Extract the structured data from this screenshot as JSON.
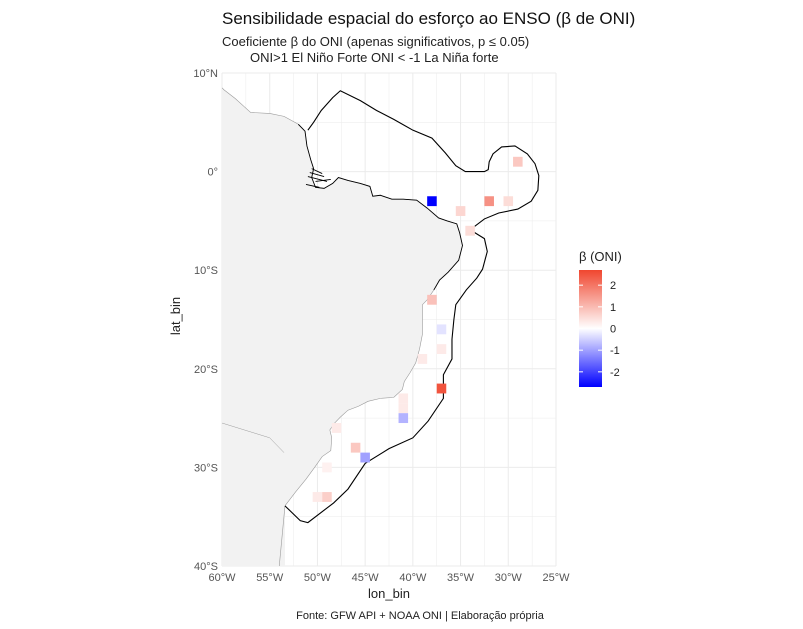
{
  "chart_data": {
    "type": "heatmap",
    "title": "Sensibilidade espacial do esforço ao ENSO (β de ONI)",
    "subtitle_lines": [
      "Coeficiente β do ONI (apenas significativos, p ≤ 0.05)",
      "ONI>1 El Niño Forte ONI < -1 La Niña forte"
    ],
    "xlabel": "lon_bin",
    "ylabel": "lat_bin",
    "caption": "Fonte: GFW API + NOAA ONI | Elaboração própria",
    "xlim": [
      -60,
      -25
    ],
    "ylim": [
      -40,
      10
    ],
    "x_ticks": [
      -60,
      -55,
      -50,
      -45,
      -40,
      -35,
      -30,
      -25
    ],
    "x_tick_labels": [
      "60°W",
      "55°W",
      "50°W",
      "45°W",
      "40°W",
      "35°W",
      "30°W",
      "25°W"
    ],
    "y_ticks": [
      10,
      0,
      -10,
      -20,
      -30,
      -40
    ],
    "y_tick_labels": [
      "10°N",
      "0°",
      "10°S",
      "20°S",
      "30°S",
      "40°S"
    ],
    "grid": true,
    "legend": {
      "title": "β (ONI)",
      "placement": "right",
      "min": -2.7,
      "max": 2.7,
      "ticks": [
        2,
        1,
        0,
        -1,
        -2
      ],
      "tick_labels": [
        "2",
        "1",
        "0",
        "-1",
        "-2"
      ],
      "low_color": "#0000ff",
      "mid_color": "#ffffff",
      "high_color": "#f0462f"
    },
    "colors": {
      "land": "#f2f2f2",
      "land_stroke": "#9a9a9a",
      "eez_stroke": "#000000",
      "grid": "#ebebeb"
    },
    "cells": [
      {
        "lon": -29,
        "lat": 1,
        "value": 0.8
      },
      {
        "lon": -38,
        "lat": -3,
        "value": -2.7
      },
      {
        "lon": -32,
        "lat": -3,
        "value": 1.6
      },
      {
        "lon": -30,
        "lat": -3,
        "value": 0.5
      },
      {
        "lon": -35,
        "lat": -4,
        "value": 0.6
      },
      {
        "lon": -34,
        "lat": -6,
        "value": 0.5
      },
      {
        "lon": -38,
        "lat": -13,
        "value": 0.9
      },
      {
        "lon": -37,
        "lat": -16,
        "value": -0.3
      },
      {
        "lon": -37,
        "lat": -18,
        "value": 0.3
      },
      {
        "lon": -39,
        "lat": -19,
        "value": 0.3
      },
      {
        "lon": -37,
        "lat": -22,
        "value": 2.5
      },
      {
        "lon": -41,
        "lat": -23,
        "value": 0.3
      },
      {
        "lon": -41,
        "lat": -24,
        "value": 0.3
      },
      {
        "lon": -41,
        "lat": -25,
        "value": -0.8
      },
      {
        "lon": -48,
        "lat": -26,
        "value": 0.3
      },
      {
        "lon": -46,
        "lat": -28,
        "value": 0.8
      },
      {
        "lon": -45,
        "lat": -29,
        "value": -1.0
      },
      {
        "lon": -49,
        "lat": -30,
        "value": 0.2
      },
      {
        "lon": -50,
        "lat": -33,
        "value": 0.3
      },
      {
        "lon": -49,
        "lat": -33,
        "value": 0.7
      }
    ],
    "eez_boundary": [
      [
        -53.4,
        -33.9
      ],
      [
        -51.8,
        -35.4
      ],
      [
        -51,
        -35.6
      ],
      [
        -48.3,
        -33.6
      ],
      [
        -46.8,
        -32.2
      ],
      [
        -45,
        -29.6
      ],
      [
        -42.5,
        -28.1
      ],
      [
        -40,
        -27
      ],
      [
        -38.4,
        -25.3
      ],
      [
        -36.8,
        -23
      ],
      [
        -36.8,
        -20.6
      ],
      [
        -35.9,
        -19
      ],
      [
        -35.9,
        -17
      ],
      [
        -35.7,
        -15
      ],
      [
        -35.5,
        -13.5
      ],
      [
        -34.4,
        -12
      ],
      [
        -33.3,
        -10.8
      ],
      [
        -32.7,
        -9.9
      ],
      [
        -32.2,
        -8.1
      ],
      [
        -32.5,
        -6.8
      ],
      [
        -34,
        -5.9
      ],
      [
        -32.5,
        -4.8
      ],
      [
        -31,
        -4.2
      ],
      [
        -29,
        -3.8
      ],
      [
        -27.6,
        -3
      ],
      [
        -26.9,
        -1.9
      ],
      [
        -26.8,
        -0.4
      ],
      [
        -27.2,
        0.8
      ],
      [
        -28,
        1.8
      ],
      [
        -29.3,
        2.6
      ],
      [
        -30.7,
        2.5
      ],
      [
        -31.6,
        1.8
      ],
      [
        -32,
        1
      ],
      [
        -32.1,
        0.2
      ],
      [
        -32.5,
        0
      ],
      [
        -34.5,
        0
      ],
      [
        -35.5,
        0.6
      ],
      [
        -36.6,
        1.9
      ],
      [
        -38,
        3.4
      ],
      [
        -40,
        4.2
      ],
      [
        -42,
        5.3
      ],
      [
        -43.8,
        6.2
      ],
      [
        -45.5,
        7.2
      ],
      [
        -47.6,
        8.2
      ],
      [
        -48.4,
        7.5
      ],
      [
        -49.6,
        6.2
      ],
      [
        -50.4,
        5
      ],
      [
        -51,
        4.2
      ]
    ],
    "coast": [
      [
        -53.4,
        -33.9
      ],
      [
        -52.3,
        -32.5
      ],
      [
        -51.2,
        -31.2
      ],
      [
        -50.3,
        -30
      ],
      [
        -49.5,
        -28.9
      ],
      [
        -48.6,
        -28.3
      ],
      [
        -48.5,
        -27
      ],
      [
        -48.7,
        -26.2
      ],
      [
        -48.2,
        -25.5
      ],
      [
        -47.6,
        -24.9
      ],
      [
        -46.8,
        -24.2
      ],
      [
        -45.7,
        -23.8
      ],
      [
        -44.7,
        -23.3
      ],
      [
        -43.4,
        -23
      ],
      [
        -42,
        -22.9
      ],
      [
        -41.1,
        -22.1
      ],
      [
        -40.9,
        -21.3
      ],
      [
        -40.3,
        -20.4
      ],
      [
        -39.7,
        -19.4
      ],
      [
        -39.3,
        -18
      ],
      [
        -39,
        -16.5
      ],
      [
        -39,
        -15
      ],
      [
        -39,
        -13.5
      ],
      [
        -38.5,
        -13
      ],
      [
        -37.8,
        -12
      ],
      [
        -37.2,
        -11
      ],
      [
        -36.3,
        -10.2
      ],
      [
        -35.2,
        -9
      ],
      [
        -34.8,
        -7.5
      ],
      [
        -35.1,
        -6.2
      ],
      [
        -35.4,
        -5.3
      ],
      [
        -36.4,
        -5
      ],
      [
        -37.3,
        -4.7
      ],
      [
        -38.5,
        -3.7
      ],
      [
        -39.6,
        -2.9
      ],
      [
        -41,
        -2.8
      ],
      [
        -42.2,
        -2.8
      ],
      [
        -43.4,
        -2.4
      ],
      [
        -44.2,
        -2.5
      ],
      [
        -44.5,
        -1.5
      ],
      [
        -45.5,
        -1.2
      ],
      [
        -46.8,
        -0.9
      ],
      [
        -47.8,
        -0.6
      ],
      [
        -48.4,
        -1.2
      ],
      [
        -49.3,
        -1.7
      ],
      [
        -50.2,
        -1.6
      ],
      [
        -50.6,
        -0.6
      ],
      [
        -50.4,
        0.3
      ],
      [
        -50.7,
        1.2
      ],
      [
        -51.1,
        2.6
      ],
      [
        -51.3,
        4.1
      ],
      [
        -52,
        4.8
      ],
      [
        -53.5,
        5.6
      ],
      [
        -55,
        5.9
      ],
      [
        -57,
        6
      ],
      [
        -57.8,
        6.7
      ],
      [
        -58.6,
        7.4
      ],
      [
        -59.8,
        8.3
      ],
      [
        -60,
        8.5
      ]
    ]
  }
}
